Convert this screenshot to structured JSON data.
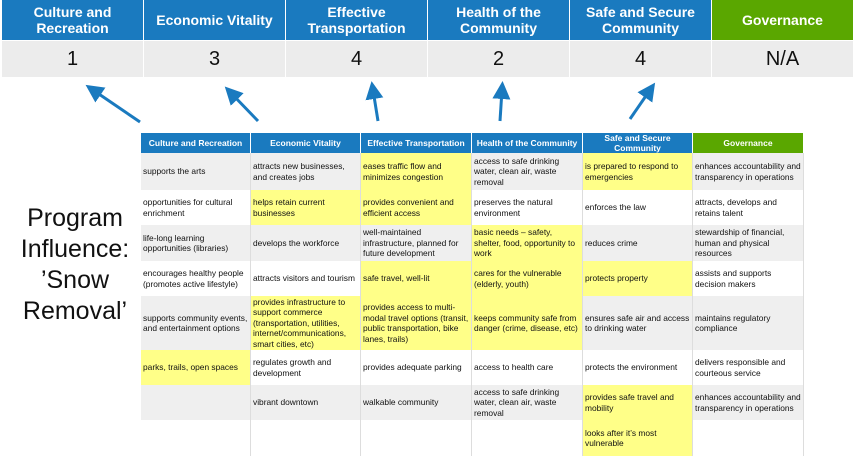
{
  "categories": [
    {
      "label": "Culture and Recreation",
      "score": "1",
      "color": "#1a7abf"
    },
    {
      "label": "Economic Vitality",
      "score": "3",
      "color": "#1a7abf"
    },
    {
      "label": "Effective Transportation",
      "score": "4",
      "color": "#1a7abf"
    },
    {
      "label": "Health of the Community",
      "score": "2",
      "color": "#1a7abf"
    },
    {
      "label": "Safe and Secure Community",
      "score": "4",
      "color": "#1a7abf"
    },
    {
      "label": "Governance",
      "score": "N/A",
      "color": "#5aa700"
    }
  ],
  "side_label": "Program Influence: ’Snow Removal’",
  "highlight_color": "#ffff88",
  "table": {
    "headers": [
      "Culture and Recreation",
      "Economic Vitality",
      "Effective Transportation",
      "Health of the Community",
      "Safe and Secure Community",
      "Governance"
    ],
    "rows": [
      [
        {
          "t": "supports the arts"
        },
        {
          "t": "attracts new businesses, and creates jobs"
        },
        {
          "t": "eases traffic flow and minimizes congestion",
          "h": true
        },
        {
          "t": "access to safe drinking water, clean air, waste removal"
        },
        {
          "t": "is prepared to respond to emergencies",
          "h": true
        },
        {
          "t": "enhances accountability and transparency in operations"
        }
      ],
      [
        {
          "t": "opportunities for cultural enrichment"
        },
        {
          "t": "helps retain current businesses",
          "h": true
        },
        {
          "t": "provides convenient and efficient access",
          "h": true
        },
        {
          "t": "preserves the natural environment"
        },
        {
          "t": "enforces the law"
        },
        {
          "t": "attracts, develops and retains talent"
        }
      ],
      [
        {
          "t": "life-long learning opportunities (libraries)"
        },
        {
          "t": "develops the workforce"
        },
        {
          "t": "well-maintained infrastructure, planned for future development"
        },
        {
          "t": "basic needs – safety, shelter, food, opportunity to work",
          "h": true
        },
        {
          "t": "reduces crime"
        },
        {
          "t": "stewardship of financial, human and physical resources"
        }
      ],
      [
        {
          "t": "encourages healthy people (promotes active lifestyle)"
        },
        {
          "t": "attracts visitors and tourism"
        },
        {
          "t": "safe travel, well-lit",
          "h": true
        },
        {
          "t": "cares for the vulnerable (elderly, youth)",
          "h": true
        },
        {
          "t": "protects property",
          "h": true
        },
        {
          "t": "assists and supports decision makers"
        }
      ],
      [
        {
          "t": "supports community events, and entertainment options"
        },
        {
          "t": "provides infrastructure to support commerce (transportation, utilities, internet/communications, smart cities, etc)",
          "h": true
        },
        {
          "t": "provides access to multi-modal travel options (transit, public transportation, bike lanes, trails)",
          "h": true
        },
        {
          "t": "keeps community safe from danger (crime, disease, etc)",
          "h": true
        },
        {
          "t": "ensures safe air and access to drinking water"
        },
        {
          "t": "maintains regulatory compliance"
        }
      ],
      [
        {
          "t": "parks, trails, open spaces",
          "h": true
        },
        {
          "t": "regulates growth and development"
        },
        {
          "t": "provides adequate parking"
        },
        {
          "t": "access to health care"
        },
        {
          "t": "protects the environment"
        },
        {
          "t": "delivers responsible and courteous service"
        }
      ],
      [
        {
          "t": ""
        },
        {
          "t": "vibrant downtown"
        },
        {
          "t": "walkable community"
        },
        {
          "t": "access to safe drinking water, clean air, waste removal"
        },
        {
          "t": "provides safe travel and mobility",
          "h": true
        },
        {
          "t": "enhances accountability and transparency in operations"
        }
      ],
      [
        {
          "t": ""
        },
        {
          "t": ""
        },
        {
          "t": ""
        },
        {
          "t": ""
        },
        {
          "t": "looks after it’s most vulnerable",
          "h": true
        },
        {
          "t": ""
        }
      ]
    ]
  }
}
